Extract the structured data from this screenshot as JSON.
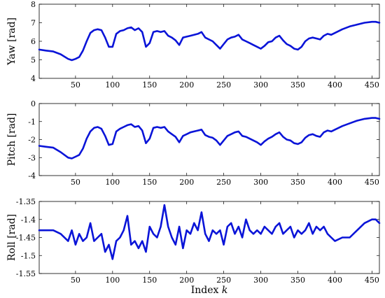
{
  "chart_data": [
    {
      "type": "line",
      "ylabel": "Yaw [rad]",
      "xlabel": "",
      "xlim": [
        1,
        460
      ],
      "ylim": [
        4,
        8
      ],
      "xticks": [
        50,
        100,
        150,
        200,
        250,
        300,
        350,
        400,
        450
      ],
      "yticks": [
        4,
        5,
        6,
        7,
        8
      ],
      "color": "#0a14d8",
      "series": [
        {
          "x": [
            1,
            10,
            20,
            30,
            40,
            45,
            50,
            55,
            60,
            65,
            70,
            75,
            80,
            85,
            90,
            95,
            100,
            105,
            110,
            115,
            120,
            125,
            130,
            135,
            140,
            145,
            150,
            155,
            160,
            165,
            170,
            175,
            180,
            185,
            190,
            195,
            200,
            205,
            210,
            215,
            220,
            225,
            230,
            235,
            240,
            245,
            250,
            255,
            260,
            265,
            270,
            275,
            280,
            285,
            290,
            295,
            300,
            305,
            310,
            315,
            320,
            325,
            330,
            335,
            340,
            345,
            350,
            355,
            360,
            365,
            370,
            375,
            380,
            385,
            390,
            395,
            400,
            410,
            420,
            430,
            440,
            450,
            455,
            460
          ],
          "y": [
            5.55,
            5.5,
            5.45,
            5.3,
            5.05,
            4.98,
            5.05,
            5.15,
            5.5,
            6.0,
            6.45,
            6.6,
            6.65,
            6.6,
            6.2,
            5.7,
            5.7,
            6.4,
            6.55,
            6.6,
            6.7,
            6.75,
            6.6,
            6.7,
            6.5,
            5.7,
            5.9,
            6.5,
            6.55,
            6.5,
            6.55,
            6.3,
            6.2,
            6.05,
            5.8,
            6.2,
            6.25,
            6.3,
            6.35,
            6.4,
            6.5,
            6.2,
            6.1,
            6.0,
            5.8,
            5.6,
            5.85,
            6.1,
            6.2,
            6.25,
            6.35,
            6.1,
            6.0,
            5.9,
            5.8,
            5.7,
            5.6,
            5.75,
            5.95,
            6.0,
            6.2,
            6.3,
            6.05,
            5.85,
            5.75,
            5.6,
            5.55,
            5.7,
            6.0,
            6.15,
            6.2,
            6.15,
            6.1,
            6.3,
            6.4,
            6.35,
            6.45,
            6.65,
            6.8,
            6.9,
            7.0,
            7.05,
            7.05,
            7.0
          ]
        }
      ]
    },
    {
      "type": "line",
      "ylabel": "Pitch [rad]",
      "xlabel": "",
      "xlim": [
        1,
        460
      ],
      "ylim": [
        -4,
        0
      ],
      "xticks": [
        50,
        100,
        150,
        200,
        250,
        300,
        350,
        400,
        450
      ],
      "yticks": [
        -4,
        -3,
        -2,
        -1,
        0
      ],
      "color": "#0a14d8",
      "series": [
        {
          "x": [
            1,
            10,
            20,
            30,
            40,
            45,
            50,
            55,
            60,
            65,
            70,
            75,
            80,
            85,
            90,
            95,
            100,
            105,
            110,
            115,
            120,
            125,
            130,
            135,
            140,
            145,
            150,
            155,
            160,
            165,
            170,
            175,
            180,
            185,
            190,
            195,
            200,
            205,
            210,
            215,
            220,
            225,
            230,
            235,
            240,
            245,
            250,
            255,
            260,
            265,
            270,
            275,
            280,
            285,
            290,
            295,
            300,
            305,
            310,
            315,
            320,
            325,
            330,
            335,
            340,
            345,
            350,
            355,
            360,
            365,
            370,
            375,
            380,
            385,
            390,
            395,
            400,
            410,
            420,
            430,
            440,
            450,
            455,
            460
          ],
          "y": [
            -2.35,
            -2.4,
            -2.45,
            -2.7,
            -3.0,
            -3.05,
            -2.95,
            -2.85,
            -2.5,
            -1.95,
            -1.55,
            -1.35,
            -1.3,
            -1.4,
            -1.8,
            -2.3,
            -2.25,
            -1.55,
            -1.4,
            -1.3,
            -1.2,
            -1.15,
            -1.3,
            -1.25,
            -1.5,
            -2.2,
            -1.95,
            -1.35,
            -1.3,
            -1.35,
            -1.3,
            -1.55,
            -1.7,
            -1.85,
            -2.15,
            -1.8,
            -1.7,
            -1.6,
            -1.55,
            -1.5,
            -1.45,
            -1.75,
            -1.85,
            -1.9,
            -2.05,
            -2.3,
            -2.05,
            -1.8,
            -1.7,
            -1.6,
            -1.55,
            -1.8,
            -1.85,
            -1.95,
            -2.05,
            -2.15,
            -2.3,
            -2.1,
            -1.95,
            -1.85,
            -1.7,
            -1.6,
            -1.85,
            -2.0,
            -2.05,
            -2.2,
            -2.25,
            -2.15,
            -1.9,
            -1.75,
            -1.7,
            -1.8,
            -1.85,
            -1.6,
            -1.5,
            -1.55,
            -1.45,
            -1.25,
            -1.1,
            -0.95,
            -0.85,
            -0.8,
            -0.8,
            -0.85
          ]
        }
      ]
    },
    {
      "type": "line",
      "ylabel": "Roll [rad]",
      "xlabel": "Index k",
      "xlim": [
        1,
        460
      ],
      "ylim": [
        -1.55,
        -1.35
      ],
      "xticks": [
        50,
        100,
        150,
        200,
        250,
        300,
        350,
        400,
        450
      ],
      "yticks": [
        -1.55,
        -1.5,
        -1.45,
        -1.4,
        -1.35
      ],
      "color": "#0a14d8",
      "series": [
        {
          "x": [
            1,
            10,
            20,
            30,
            40,
            45,
            50,
            55,
            60,
            65,
            70,
            75,
            80,
            85,
            90,
            95,
            100,
            105,
            110,
            115,
            120,
            125,
            130,
            135,
            140,
            145,
            150,
            155,
            160,
            165,
            170,
            175,
            180,
            185,
            190,
            195,
            200,
            205,
            210,
            215,
            220,
            225,
            230,
            235,
            240,
            245,
            250,
            255,
            260,
            265,
            270,
            275,
            280,
            285,
            290,
            295,
            300,
            305,
            310,
            315,
            320,
            325,
            330,
            335,
            340,
            345,
            350,
            355,
            360,
            365,
            370,
            375,
            380,
            385,
            390,
            395,
            400,
            410,
            420,
            430,
            440,
            450,
            455,
            460
          ],
          "y": [
            -1.43,
            -1.43,
            -1.43,
            -1.44,
            -1.46,
            -1.43,
            -1.47,
            -1.44,
            -1.46,
            -1.45,
            -1.41,
            -1.46,
            -1.45,
            -1.44,
            -1.49,
            -1.47,
            -1.51,
            -1.46,
            -1.45,
            -1.43,
            -1.39,
            -1.47,
            -1.46,
            -1.48,
            -1.46,
            -1.49,
            -1.42,
            -1.44,
            -1.45,
            -1.42,
            -1.36,
            -1.42,
            -1.45,
            -1.47,
            -1.42,
            -1.48,
            -1.43,
            -1.44,
            -1.41,
            -1.43,
            -1.38,
            -1.44,
            -1.46,
            -1.43,
            -1.44,
            -1.43,
            -1.47,
            -1.42,
            -1.41,
            -1.44,
            -1.42,
            -1.45,
            -1.4,
            -1.43,
            -1.44,
            -1.43,
            -1.44,
            -1.42,
            -1.43,
            -1.44,
            -1.42,
            -1.41,
            -1.44,
            -1.43,
            -1.42,
            -1.45,
            -1.43,
            -1.44,
            -1.43,
            -1.41,
            -1.44,
            -1.42,
            -1.43,
            -1.42,
            -1.44,
            -1.45,
            -1.46,
            -1.45,
            -1.45,
            -1.43,
            -1.41,
            -1.4,
            -1.4,
            -1.41
          ]
        }
      ]
    }
  ]
}
